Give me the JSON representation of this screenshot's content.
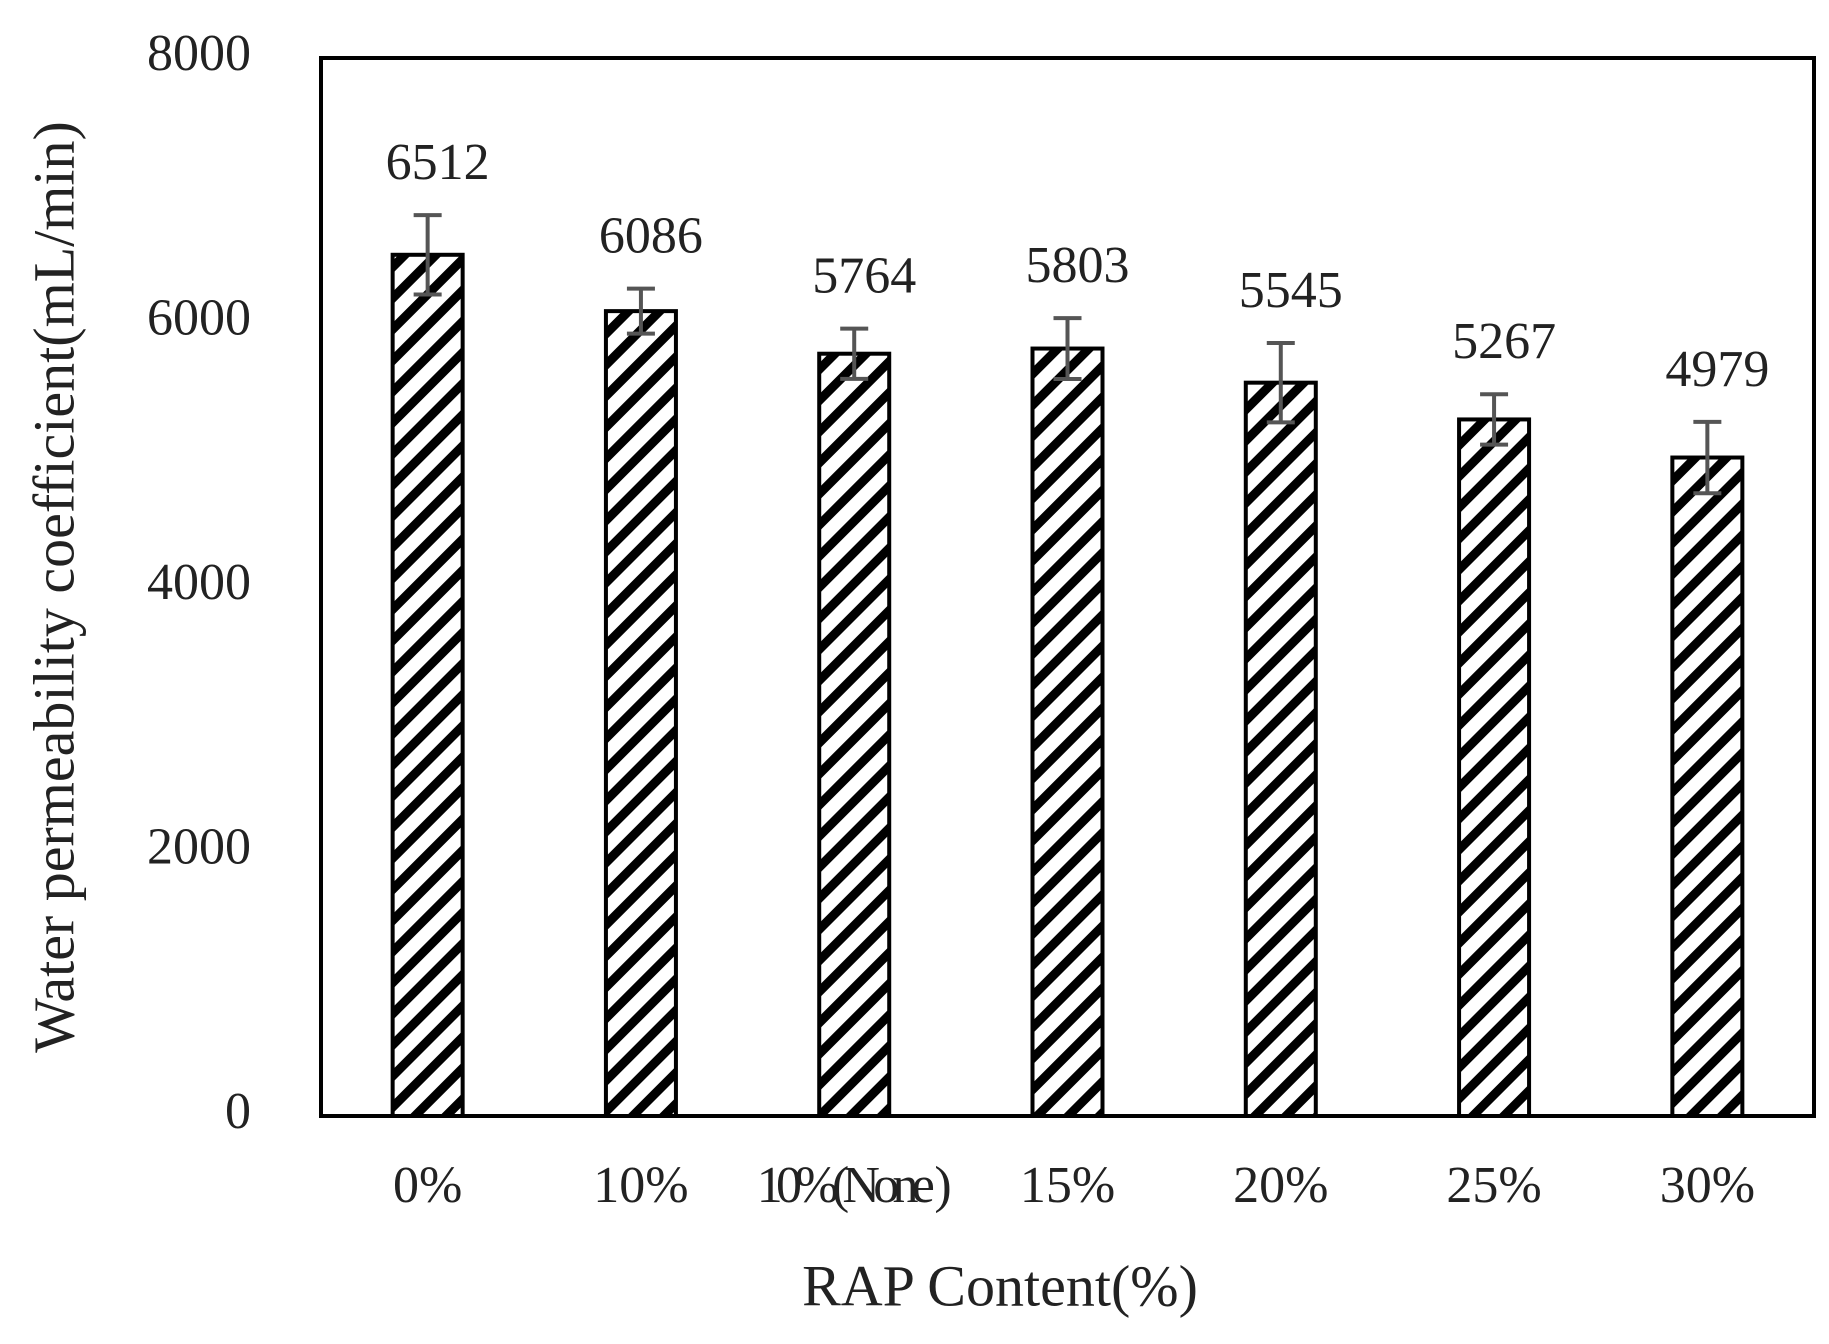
{
  "chart_data": {
    "type": "bar",
    "x_label": "RAP Content(%)",
    "y_label": "Water permeability coefficient(mL/min)",
    "categories": [
      "0%",
      "10%",
      "10%(None )",
      "15%",
      "20%",
      "25%",
      "30%"
    ],
    "values": [
      6512,
      6086,
      5764,
      5803,
      5545,
      5267,
      4979
    ],
    "errors": [
      300,
      170,
      190,
      230,
      300,
      190,
      270
    ],
    "color": "#000000",
    "ylim": [
      0,
      8000
    ],
    "yticks": [
      0,
      2000,
      4000,
      6000,
      8000
    ],
    "grid": false
  }
}
